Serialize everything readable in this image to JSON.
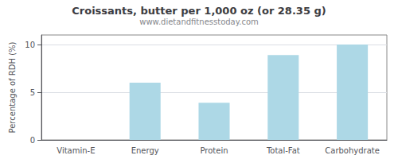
{
  "chart_data": {
    "type": "bar",
    "title": "Croissants, butter per 1,000 oz (or 28.35 g)",
    "subtitle": "www.dietandfitnesstoday.com",
    "categories": [
      "Vitamin-E",
      "Energy",
      "Protein",
      "Total-Fat",
      "Carbohydrate"
    ],
    "values": [
      0,
      6.0,
      3.9,
      8.9,
      10.0
    ],
    "color": "#add8e6",
    "ylabel": "Percentage of RDH (%)",
    "ylim": [
      0,
      11
    ],
    "yticks": [
      0,
      5,
      10
    ],
    "grid": true
  }
}
